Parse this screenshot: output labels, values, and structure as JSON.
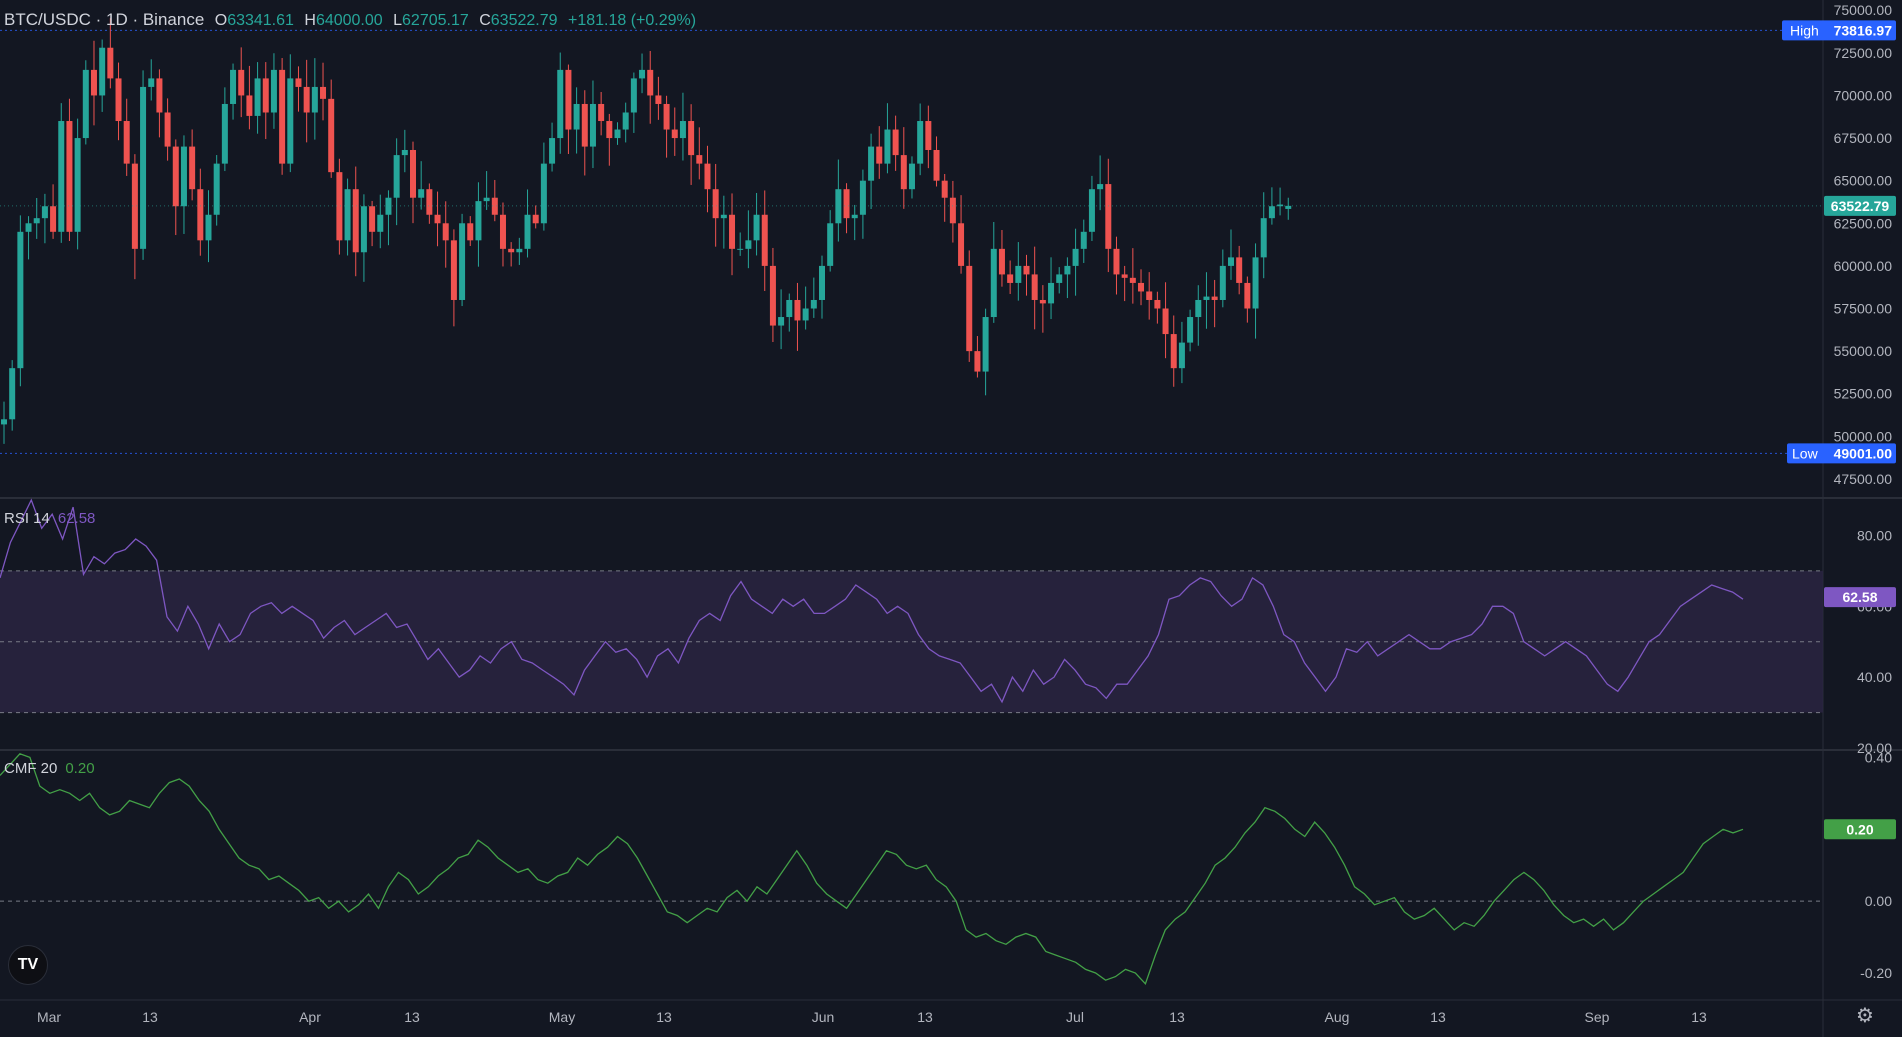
{
  "header": {
    "symbol": "BTC/USDC · 1D · Binance",
    "open_label": "O",
    "open": "63341.61",
    "high_label": "H",
    "high": "64000.00",
    "low_label": "L",
    "low": "62705.17",
    "close_label": "C",
    "close": "63522.79",
    "change": "+181.18 (+0.29%)"
  },
  "colors": {
    "background": "#131722",
    "up": "#26a69a",
    "down": "#ef5350",
    "rsi_line": "#7e57c2",
    "rsi_band": "#2a2541",
    "cmf_line": "#43a047",
    "high_low_marker": "#2962ff",
    "grid_text": "#b2b5be"
  },
  "chart_data": [
    {
      "type": "candlestick",
      "title": "BTC/USDC · 1D · Binance",
      "price_axis_ticks": [
        "75000.00",
        "72500.00",
        "70000.00",
        "67500.00",
        "65000.00",
        "62500.00",
        "60000.00",
        "57500.00",
        "55000.00",
        "52500.00",
        "50000.00",
        "47500.00"
      ],
      "ylim": [
        46500,
        75600
      ],
      "x_axis_labels": [
        "Mar",
        "13",
        "Apr",
        "13",
        "May",
        "13",
        "Jun",
        "13",
        "Jul",
        "13",
        "Aug",
        "13",
        "Sep",
        "13"
      ],
      "markers": {
        "high_label": "High",
        "high_value": "73816.97",
        "low_label": "Low",
        "low_value": "49001.00",
        "last_value": "63522.79"
      },
      "anchors": {
        "price": [
          51000,
          54000,
          62000,
          62500,
          62800,
          63500,
          62000,
          68500,
          62000,
          67500,
          71500,
          70000,
          72800,
          71000,
          68500,
          66000,
          61000,
          70500,
          71000,
          69000,
          67000,
          63500,
          67000,
          64500,
          61500,
          63000,
          66000,
          69500,
          71500,
          70000,
          68800,
          71000,
          69000,
          71500,
          66000,
          71000,
          70500,
          69000,
          70500,
          69800,
          65500,
          61500,
          64500,
          60800,
          63500,
          62000,
          63000,
          64000,
          66500,
          66800,
          64000,
          64500,
          63000,
          62500,
          61500,
          58000,
          62500,
          61500,
          63800,
          64000,
          63000,
          61000,
          60800,
          61000,
          63000,
          62500,
          66000,
          67500,
          71500,
          68000,
          69500,
          67000,
          69500,
          68500,
          67500,
          68000,
          69000,
          71000,
          71500,
          70000,
          69500,
          68000,
          67500,
          68500,
          66500,
          66000,
          64500,
          62800,
          63000,
          61000,
          61000,
          61500,
          63000,
          60000,
          56500,
          57000,
          58000,
          56800,
          57500,
          58000,
          60000,
          62500,
          64500,
          62800,
          63000,
          65000,
          67000,
          66000,
          68000,
          66500,
          64500,
          66000,
          68500,
          66800,
          65000,
          64000,
          62500,
          60000,
          55000,
          53800,
          57000,
          61000,
          59500,
          59000,
          60000,
          59500,
          58000,
          57800,
          59000,
          59500,
          60000,
          61000,
          62000,
          64500,
          64800,
          61000,
          59500,
          59300,
          59000,
          58500,
          58000,
          57500,
          56000,
          54000,
          55500,
          57000,
          58000,
          58200,
          58000,
          60000,
          60500,
          59000,
          57500,
          60500,
          62800,
          63500,
          63600,
          63522
        ]
      },
      "last_candle": {
        "open": 63341.61,
        "high": 64000.0,
        "low": 62705.17,
        "close": 63522.79
      }
    },
    {
      "type": "line",
      "title": "RSI",
      "legend_name": "RSI 14",
      "legend_value": "62.58",
      "ylim": [
        20,
        90
      ],
      "ticks": [
        "80.00",
        "60.00",
        "40.00",
        "20.00"
      ],
      "bands": [
        30,
        50,
        70
      ],
      "last_value": "62.58",
      "values": [
        68,
        78,
        84,
        90,
        82,
        86,
        79,
        88,
        69,
        74,
        72,
        75,
        76,
        79,
        77,
        73,
        57,
        53,
        60,
        55,
        48,
        55,
        50,
        52,
        58,
        60,
        61,
        58,
        60,
        58,
        56,
        51,
        54,
        56,
        52,
        54,
        56,
        58,
        54,
        55,
        50,
        45,
        48,
        44,
        40,
        42,
        46,
        44,
        48,
        50,
        45,
        44,
        42,
        40,
        38,
        35,
        42,
        46,
        50,
        47,
        48,
        45,
        40,
        46,
        48,
        44,
        51,
        56,
        58,
        56,
        63,
        67,
        62,
        60,
        58,
        62,
        60,
        62,
        58,
        58,
        60,
        62,
        66,
        64,
        62,
        58,
        60,
        58,
        52,
        48,
        46,
        45,
        44,
        40,
        36,
        38,
        33,
        40,
        36,
        42,
        38,
        40,
        45,
        42,
        38,
        37,
        34,
        38,
        38,
        42,
        46,
        52,
        62,
        63,
        66,
        68,
        67,
        63,
        60,
        62,
        68,
        66,
        60,
        52,
        50,
        44,
        40,
        36,
        40,
        48,
        47,
        50,
        46,
        48,
        50,
        52,
        50,
        48,
        48,
        50,
        51,
        52,
        55,
        60,
        60,
        58,
        50,
        48,
        46,
        48,
        50,
        48,
        46,
        42,
        38,
        36,
        40,
        45,
        50,
        52,
        56,
        60,
        62,
        64,
        66,
        65,
        64,
        62
      ]
    },
    {
      "type": "line",
      "title": "CMF",
      "legend_name": "CMF 20",
      "legend_value": "0.20",
      "ylim": [
        -0.275,
        0.415
      ],
      "ticks": [
        "0.40",
        "0.00",
        "-0.20"
      ],
      "zero_line": 0,
      "last_value": "0.20",
      "values": [
        0.35,
        0.38,
        0.41,
        0.4,
        0.32,
        0.3,
        0.31,
        0.3,
        0.28,
        0.3,
        0.26,
        0.24,
        0.25,
        0.28,
        0.27,
        0.26,
        0.3,
        0.33,
        0.34,
        0.32,
        0.28,
        0.25,
        0.2,
        0.16,
        0.12,
        0.1,
        0.09,
        0.06,
        0.07,
        0.05,
        0.03,
        0.0,
        0.01,
        -0.02,
        0.0,
        -0.03,
        -0.01,
        0.02,
        -0.02,
        0.04,
        0.08,
        0.06,
        0.02,
        0.04,
        0.07,
        0.09,
        0.12,
        0.13,
        0.17,
        0.15,
        0.12,
        0.1,
        0.08,
        0.09,
        0.06,
        0.05,
        0.07,
        0.08,
        0.12,
        0.1,
        0.13,
        0.15,
        0.18,
        0.16,
        0.12,
        0.07,
        0.02,
        -0.03,
        -0.04,
        -0.06,
        -0.04,
        -0.02,
        -0.03,
        0.01,
        0.03,
        0.0,
        0.04,
        0.02,
        0.06,
        0.1,
        0.14,
        0.1,
        0.05,
        0.02,
        0.0,
        -0.02,
        0.02,
        0.06,
        0.1,
        0.14,
        0.13,
        0.1,
        0.09,
        0.1,
        0.06,
        0.04,
        0.0,
        -0.08,
        -0.1,
        -0.09,
        -0.11,
        -0.12,
        -0.1,
        -0.09,
        -0.1,
        -0.14,
        -0.15,
        -0.16,
        -0.17,
        -0.19,
        -0.2,
        -0.22,
        -0.21,
        -0.19,
        -0.2,
        -0.23,
        -0.15,
        -0.08,
        -0.05,
        -0.03,
        0.01,
        0.05,
        0.1,
        0.12,
        0.15,
        0.19,
        0.22,
        0.26,
        0.25,
        0.23,
        0.2,
        0.18,
        0.22,
        0.19,
        0.15,
        0.1,
        0.04,
        0.02,
        -0.01,
        0.0,
        0.01,
        -0.03,
        -0.05,
        -0.04,
        -0.02,
        -0.05,
        -0.08,
        -0.06,
        -0.07,
        -0.04,
        0.0,
        0.03,
        0.06,
        0.08,
        0.06,
        0.03,
        -0.01,
        -0.04,
        -0.06,
        -0.05,
        -0.07,
        -0.05,
        -0.08,
        -0.06,
        -0.03,
        0.0,
        0.02,
        0.04,
        0.06,
        0.08,
        0.12,
        0.16,
        0.18,
        0.2,
        0.19,
        0.2
      ]
    }
  ],
  "logo": {
    "glyph": "TV",
    "icon": "tradingview-logo-icon"
  },
  "settings": {
    "icon": "gear-icon",
    "glyph": "⚙"
  }
}
